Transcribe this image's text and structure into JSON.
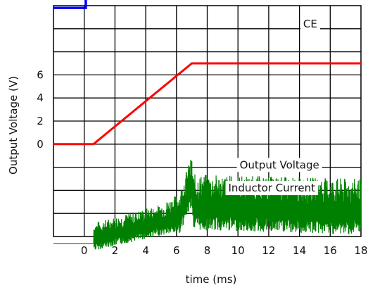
{
  "chart_data": {
    "type": "line",
    "title": "",
    "xlabel": "time (ms)",
    "ylabel": "Output Voltage (V)",
    "xlim": [
      -2,
      18
    ],
    "grid": true,
    "legend": "none",
    "x_ticks": [
      "0",
      "2",
      "4",
      "6",
      "8",
      "10",
      "12",
      "14",
      "16",
      "18"
    ],
    "x_tick_values": [
      0,
      2,
      4,
      6,
      8,
      10,
      12,
      14,
      16,
      18
    ],
    "y_ticks": [
      "0",
      "2",
      "4",
      "6"
    ],
    "y_tick_values": [
      0,
      2,
      4,
      6
    ],
    "annotations": {
      "ce": "CE",
      "output_voltage": "Output Voltage",
      "inductor_current": "Inductor Current"
    },
    "series": [
      {
        "name": "CE",
        "color": "#0000ff",
        "x": [
          -2,
          0.1,
          0.1,
          18
        ],
        "y": [
          11.8,
          11.8,
          14.6,
          14.6
        ]
      },
      {
        "name": "Output Voltage",
        "color": "#ff0000",
        "x": [
          -2,
          0.6,
          7.0,
          18
        ],
        "y": [
          0,
          0,
          7.0,
          7.0
        ]
      },
      {
        "name": "Inductor Current",
        "color": "#008000",
        "x": [
          -2,
          0.6,
          5.0,
          6.2,
          6.6,
          7.0,
          7.1,
          18
        ],
        "y": [
          -8.6,
          -8.6,
          -7.2,
          -6.8,
          -5.4,
          -4.2,
          -6.2,
          -6.6
        ],
        "ripple": [
          0,
          1.8,
          2.0,
          2.6,
          3.0,
          3.2,
          3.6,
          3.6
        ]
      }
    ]
  }
}
